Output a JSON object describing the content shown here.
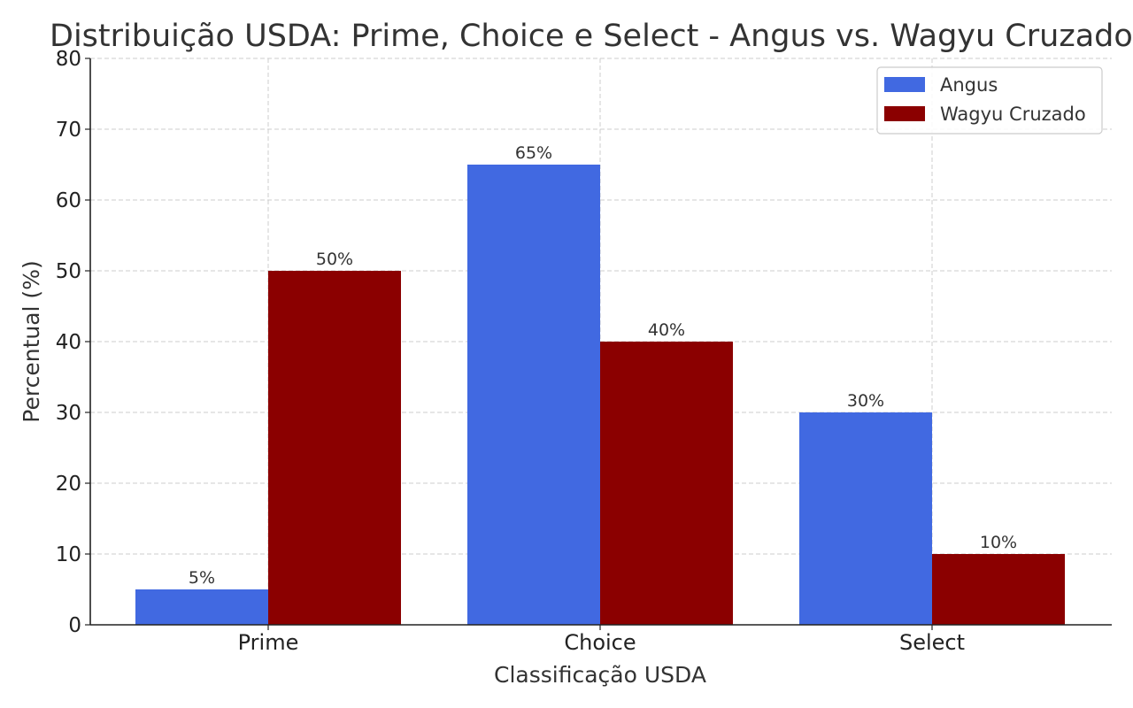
{
  "chart_data": {
    "type": "bar",
    "title": "Distribuição USDA: Prime, Choice e Select - Angus vs. Wagyu Cruzado",
    "xlabel": "Classificação USDA",
    "ylabel": "Percentual (%)",
    "categories": [
      "Prime",
      "Choice",
      "Select"
    ],
    "ylim": [
      0,
      80
    ],
    "yticks": [
      "0",
      "10",
      "20",
      "30",
      "40",
      "50",
      "60",
      "70",
      "80"
    ],
    "grid": true,
    "legend_position": "top-right",
    "series": [
      {
        "name": "Angus",
        "color": "#4169e1",
        "values": [
          5,
          65,
          30
        ],
        "labels": [
          "5%",
          "65%",
          "30%"
        ]
      },
      {
        "name": "Wagyu Cruzado",
        "color": "#8b0000",
        "values": [
          50,
          40,
          10
        ],
        "labels": [
          "50%",
          "40%",
          "10%"
        ]
      }
    ]
  }
}
